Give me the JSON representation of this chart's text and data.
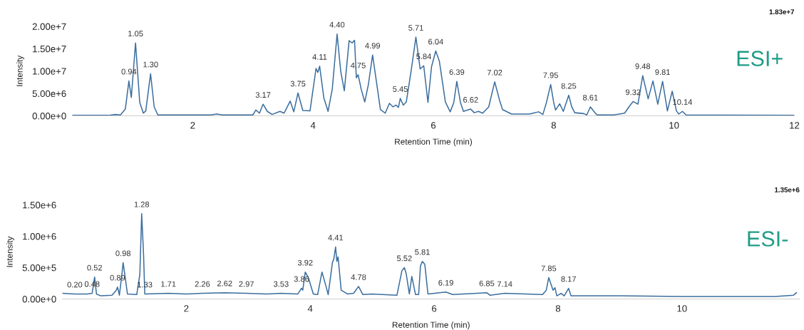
{
  "chart_data": [
    {
      "type": "line",
      "title": "ESI+",
      "xlabel": "Retention Time (min)",
      "ylabel": "Intensity",
      "xlim": [
        0,
        12
      ],
      "ylim": [
        0,
        20000000.0
      ],
      "xticks": [
        2,
        4,
        6,
        8,
        10,
        12
      ],
      "yticks": [
        {
          "value": 0,
          "label": "0.00e+0"
        },
        {
          "value": 5000000.0,
          "label": "5.00e+6"
        },
        {
          "value": 10000000.0,
          "label": "1.00e+7"
        },
        {
          "value": 15000000.0,
          "label": "1.50e+7"
        },
        {
          "value": 20000000.0,
          "label": "2.00e+7"
        }
      ],
      "series": [
        {
          "color": "#3b6e9e",
          "x": [
            0,
            0.6,
            0.7,
            0.8,
            0.88,
            0.94,
            0.98,
            1.05,
            1.12,
            1.18,
            1.22,
            1.3,
            1.36,
            1.42,
            2.0,
            2.3,
            2.4,
            2.5,
            3.0,
            3.05,
            3.11,
            3.17,
            3.24,
            3.32,
            3.45,
            3.52,
            3.62,
            3.68,
            3.75,
            3.83,
            3.95,
            4.05,
            4.08,
            4.11,
            4.18,
            4.25,
            4.32,
            4.4,
            4.46,
            4.52,
            4.6,
            4.65,
            4.69,
            4.72,
            4.75,
            4.8,
            4.86,
            4.92,
            4.99,
            5.05,
            5.12,
            5.2,
            5.27,
            5.33,
            5.38,
            5.42,
            5.45,
            5.5,
            5.55,
            5.63,
            5.71,
            5.78,
            5.84,
            5.91,
            5.97,
            6.04,
            6.1,
            6.2,
            6.28,
            6.34,
            6.39,
            6.45,
            6.5,
            6.62,
            6.68,
            6.75,
            6.82,
            6.92,
            7.02,
            7.1,
            7.15,
            7.3,
            7.6,
            7.66,
            7.75,
            7.82,
            7.88,
            7.95,
            8.0,
            8.03,
            8.1,
            8.16,
            8.25,
            8.3,
            8.35,
            8.5,
            8.55,
            8.61,
            8.68,
            8.72,
            9.0,
            9.18,
            9.25,
            9.32,
            9.4,
            9.48,
            9.57,
            9.65,
            9.73,
            9.81,
            9.89,
            9.97,
            10.04,
            10.08,
            10.14,
            10.2,
            12
          ],
          "values": [
            100000.0,
            100000.0,
            300000.0,
            200000.0,
            1500000.0,
            7800000.0,
            4100000.0,
            16300000.0,
            3000000.0,
            600000.0,
            1100000.0,
            9400000.0,
            2000000.0,
            200000.0,
            200000.0,
            200000.0,
            400000.0,
            200000.0,
            200000.0,
            1300000.0,
            600000.0,
            2600000.0,
            1000000.0,
            300000.0,
            1000000.0,
            600000.0,
            3300000.0,
            900000.0,
            5100000.0,
            1200000.0,
            1100000.0,
            10600000.0,
            9700000.0,
            11100000.0,
            4000000.0,
            1000000.0,
            6000000.0,
            18300000.0,
            10000000.0,
            5600000.0,
            16800000.0,
            16300000.0,
            16900000.0,
            8500000.0,
            9200000.0,
            6000000.0,
            3100000.0,
            7000000.0,
            13600000.0,
            8000000.0,
            1400000.0,
            600000.0,
            2800000.0,
            2000000.0,
            2400000.0,
            1900000.0,
            3900000.0,
            2400000.0,
            3100000.0,
            10000000.0,
            17600000.0,
            10500000.0,
            11200000.0,
            3000000.0,
            11000000.0,
            14500000.0,
            12200000.0,
            3100000.0,
            900000.0,
            3000000.0,
            7700000.0,
            3000000.0,
            1000000.0,
            1500000.0,
            700000.0,
            1000000.0,
            600000.0,
            2000000.0,
            7600000.0,
            3500000.0,
            1400000.0,
            400000.0,
            400000.0,
            600000.0,
            900000.0,
            300000.0,
            3000000.0,
            7000000.0,
            3000000.0,
            1300000.0,
            2700000.0,
            1000000.0,
            4600000.0,
            2000000.0,
            700000.0,
            500000.0,
            200000.0,
            2000000.0,
            800000.0,
            200000.0,
            200000.0,
            600000.0,
            2000000.0,
            3200000.0,
            2600000.0,
            9000000.0,
            3800000.0,
            7800000.0,
            2600000.0,
            7700000.0,
            1100000.0,
            5500000.0,
            1100000.0,
            400000.0,
            1000000.0,
            200000.0,
            100000.0
          ]
        }
      ],
      "annotations": [
        "1.83e+7",
        {
          "text": "0.94",
          "x": 0.94,
          "y": 7800000.0
        },
        {
          "text": "1.05",
          "x": 1.05,
          "y": 16300000.0
        },
        {
          "text": "1.30",
          "x": 1.3,
          "y": 9400000.0
        },
        {
          "text": "3.17",
          "x": 3.17,
          "y": 2600000.0
        },
        {
          "text": "3.75",
          "x": 3.75,
          "y": 5100000.0
        },
        {
          "text": "4.11",
          "x": 4.11,
          "y": 11100000.0
        },
        {
          "text": "4.40",
          "x": 4.4,
          "y": 18300000.0
        },
        {
          "text": "4.75",
          "x": 4.75,
          "y": 9200000.0
        },
        {
          "text": "4.99",
          "x": 4.99,
          "y": 13600000.0
        },
        {
          "text": "5.45",
          "x": 5.45,
          "y": 3900000.0
        },
        {
          "text": "5.71",
          "x": 5.71,
          "y": 17600000.0
        },
        {
          "text": "5.84",
          "x": 5.84,
          "y": 11200000.0
        },
        {
          "text": "6.04",
          "x": 6.04,
          "y": 14500000.0
        },
        {
          "text": "6.39",
          "x": 6.39,
          "y": 7700000.0
        },
        {
          "text": "6.62",
          "x": 6.62,
          "y": 1500000.0
        },
        {
          "text": "7.02",
          "x": 7.02,
          "y": 7600000.0
        },
        {
          "text": "7.95",
          "x": 7.95,
          "y": 7000000.0
        },
        {
          "text": "8.25",
          "x": 8.25,
          "y": 4600000.0
        },
        {
          "text": "8.61",
          "x": 8.61,
          "y": 2000000.0
        },
        {
          "text": "9.32",
          "x": 9.32,
          "y": 3200000.0
        },
        {
          "text": "9.48",
          "x": 9.48,
          "y": 9000000.0
        },
        {
          "text": "9.81",
          "x": 9.81,
          "y": 7700000.0
        },
        {
          "text": "10.14",
          "x": 10.14,
          "y": 1000000.0
        }
      ]
    },
    {
      "type": "line",
      "title": "ESI-",
      "xlabel": "Retention Time (min)",
      "ylabel": "Intensity",
      "xlim": [
        0,
        11.9
      ],
      "ylim": [
        0,
        1500000.0
      ],
      "xticks": [
        2,
        4,
        6,
        8,
        10
      ],
      "yticks": [
        {
          "value": 0,
          "label": "0.00e+0"
        },
        {
          "value": 500000.0,
          "label": "5.00e+5"
        },
        {
          "value": 1000000.0,
          "label": "1.00e+6"
        },
        {
          "value": 1500000.0,
          "label": "1.50e+6"
        }
      ],
      "series": [
        {
          "color": "#3b6e9e",
          "x": [
            0,
            0.2,
            0.4,
            0.48,
            0.5,
            0.52,
            0.55,
            0.62,
            0.8,
            0.87,
            0.89,
            0.92,
            0.96,
            0.98,
            1.02,
            1.05,
            1.2,
            1.25,
            1.28,
            1.31,
            1.33,
            1.71,
            2.0,
            2.26,
            2.62,
            2.97,
            3.3,
            3.53,
            3.8,
            3.84,
            3.86,
            3.88,
            3.92,
            3.97,
            4.05,
            4.12,
            4.19,
            4.25,
            4.29,
            4.36,
            4.38,
            4.41,
            4.43,
            4.45,
            4.5,
            4.6,
            4.7,
            4.78,
            4.85,
            5.0,
            5.4,
            5.48,
            5.52,
            5.55,
            5.6,
            5.64,
            5.7,
            5.75,
            5.78,
            5.81,
            5.85,
            5.9,
            6.19,
            6.3,
            6.85,
            6.9,
            7.14,
            7.75,
            7.81,
            7.85,
            7.92,
            7.95,
            7.98,
            8.05,
            8.1,
            8.17,
            8.21,
            9.0,
            10.0,
            11.5,
            11.8,
            11.85
          ],
          "values": [
            90000.0,
            80000.0,
            80000.0,
            90000.0,
            220000.0,
            350000.0,
            80000.0,
            50000.0,
            60000.0,
            140000.0,
            190000.0,
            60000.0,
            390000.0,
            580000.0,
            300000.0,
            80000.0,
            70000.0,
            390000.0,
            1360000.0,
            710000.0,
            80000.0,
            90000.0,
            80000.0,
            90000.0,
            100000.0,
            90000.0,
            80000.0,
            90000.0,
            80000.0,
            140000.0,
            170000.0,
            140000.0,
            430000.0,
            340000.0,
            80000.0,
            70000.0,
            430000.0,
            220000.0,
            70000.0,
            590000.0,
            630000.0,
            830000.0,
            600000.0,
            670000.0,
            140000.0,
            80000.0,
            90000.0,
            200000.0,
            70000.0,
            80000.0,
            60000.0,
            450000.0,
            500000.0,
            400000.0,
            80000.0,
            360000.0,
            70000.0,
            70000.0,
            530000.0,
            600000.0,
            550000.0,
            80000.0,
            110000.0,
            70000.0,
            100000.0,
            60000.0,
            90000.0,
            70000.0,
            140000.0,
            340000.0,
            140000.0,
            180000.0,
            50000.0,
            90000.0,
            50000.0,
            170000.0,
            50000.0,
            50000.0,
            40000.0,
            40000.0,
            60000.0,
            100000.0
          ]
        }
      ],
      "annotations": [
        "1.35e+6",
        {
          "text": "0.20",
          "x": 0.2,
          "y": 80000.0
        },
        {
          "text": "0.48",
          "x": 0.48,
          "y": 90000.0
        },
        {
          "text": "0.52",
          "x": 0.52,
          "y": 350000.0
        },
        {
          "text": "0.89",
          "x": 0.89,
          "y": 190000.0
        },
        {
          "text": "0.98",
          "x": 0.98,
          "y": 580000.0
        },
        {
          "text": "1.28",
          "x": 1.28,
          "y": 1360000.0
        },
        {
          "text": "1.33",
          "x": 1.33,
          "y": 80000.0
        },
        {
          "text": "1.71",
          "x": 1.71,
          "y": 90000.0
        },
        {
          "text": "2.26",
          "x": 2.26,
          "y": 90000.0
        },
        {
          "text": "2.62",
          "x": 2.62,
          "y": 100000.0
        },
        {
          "text": "2.97",
          "x": 2.97,
          "y": 90000.0
        },
        {
          "text": "3.53",
          "x": 3.53,
          "y": 90000.0
        },
        {
          "text": "3.86",
          "x": 3.86,
          "y": 170000.0
        },
        {
          "text": "3.92",
          "x": 3.92,
          "y": 430000.0
        },
        {
          "text": "4.41",
          "x": 4.41,
          "y": 830000.0
        },
        {
          "text": "4.78",
          "x": 4.78,
          "y": 200000.0
        },
        {
          "text": "5.52",
          "x": 5.52,
          "y": 500000.0
        },
        {
          "text": "5.81",
          "x": 5.81,
          "y": 600000.0
        },
        {
          "text": "6.19",
          "x": 6.19,
          "y": 110000.0
        },
        {
          "text": "6.85",
          "x": 6.85,
          "y": 100000.0
        },
        {
          "text": "7.14",
          "x": 7.14,
          "y": 90000.0
        },
        {
          "text": "7.85",
          "x": 7.85,
          "y": 340000.0
        },
        {
          "text": "8.17",
          "x": 8.17,
          "y": 170000.0
        }
      ]
    }
  ]
}
